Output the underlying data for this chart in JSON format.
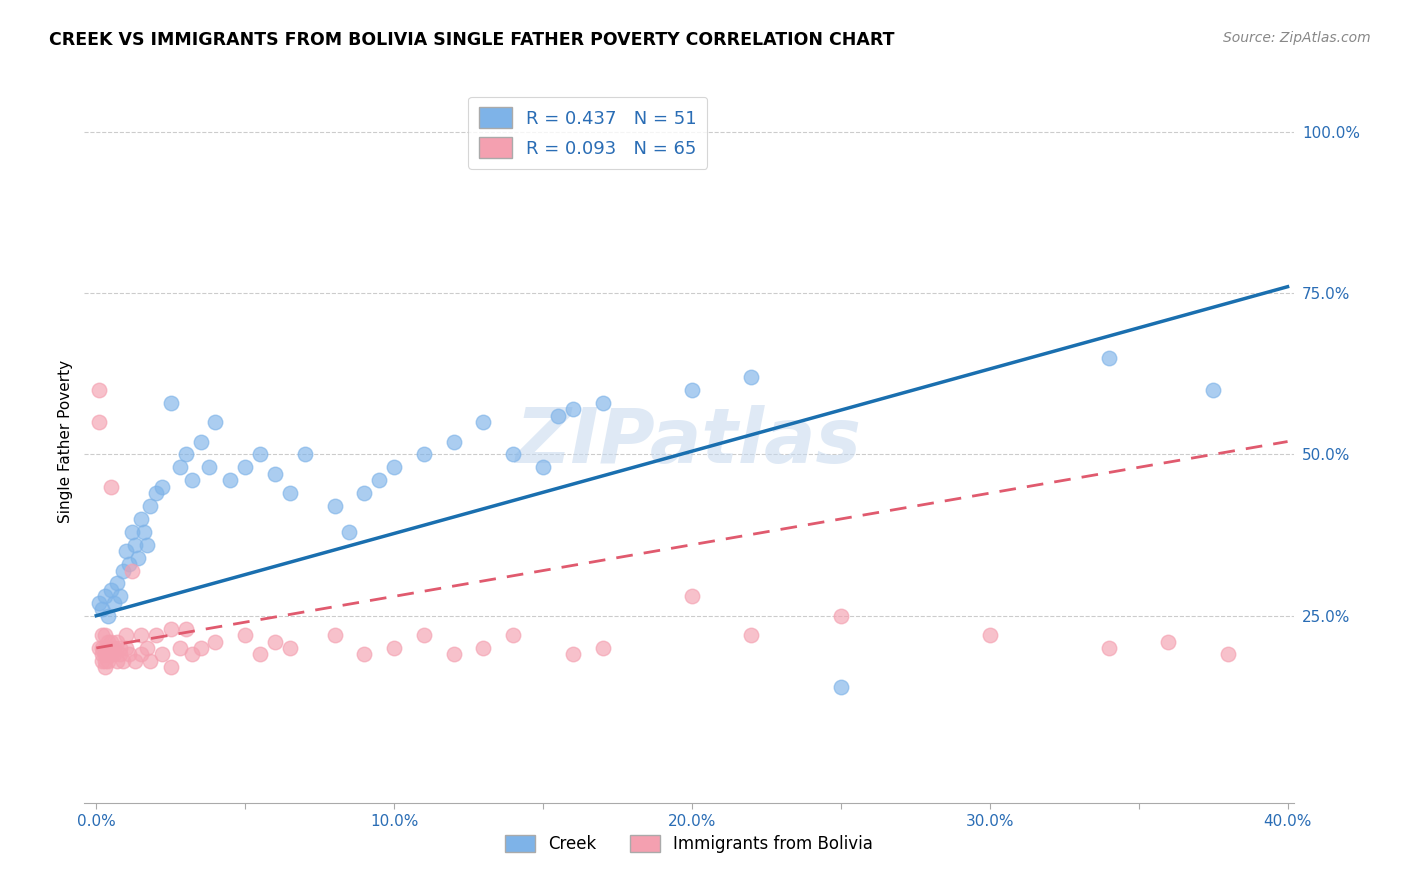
{
  "title": "CREEK VS IMMIGRANTS FROM BOLIVIA SINGLE FATHER POVERTY CORRELATION CHART",
  "source": "Source: ZipAtlas.com",
  "ylabel": "Single Father Poverty",
  "xlim": [
    -0.004,
    0.402
  ],
  "ylim": [
    -0.04,
    1.08
  ],
  "xtick_labels": [
    "0.0%",
    "",
    "10.0%",
    "",
    "20.0%",
    "",
    "30.0%",
    "",
    "40.0%"
  ],
  "xtick_values": [
    0.0,
    0.05,
    0.1,
    0.15,
    0.2,
    0.25,
    0.3,
    0.35,
    0.4
  ],
  "ytick_labels": [
    "25.0%",
    "50.0%",
    "75.0%",
    "100.0%"
  ],
  "ytick_values": [
    0.25,
    0.5,
    0.75,
    1.0
  ],
  "legend_labels": [
    "Creek",
    "Immigrants from Bolivia"
  ],
  "creek_color": "#7eb3e8",
  "bolivia_color": "#f4a0b0",
  "creek_line_color": "#1a6faf",
  "bolivia_line_color": "#e05a6e",
  "creek_R": 0.437,
  "creek_N": 51,
  "bolivia_R": 0.093,
  "bolivia_N": 65,
  "watermark": "ZIPatlas",
  "creek_x": [
    0.001,
    0.002,
    0.003,
    0.004,
    0.005,
    0.006,
    0.007,
    0.008,
    0.009,
    0.01,
    0.011,
    0.012,
    0.013,
    0.014,
    0.015,
    0.016,
    0.017,
    0.018,
    0.02,
    0.022,
    0.025,
    0.028,
    0.03,
    0.032,
    0.035,
    0.038,
    0.04,
    0.045,
    0.05,
    0.055,
    0.06,
    0.065,
    0.07,
    0.08,
    0.085,
    0.09,
    0.095,
    0.1,
    0.11,
    0.12,
    0.13,
    0.14,
    0.15,
    0.155,
    0.16,
    0.17,
    0.2,
    0.22,
    0.25,
    0.34,
    0.375
  ],
  "creek_y": [
    0.27,
    0.26,
    0.28,
    0.25,
    0.29,
    0.27,
    0.3,
    0.28,
    0.32,
    0.35,
    0.33,
    0.38,
    0.36,
    0.34,
    0.4,
    0.38,
    0.36,
    0.42,
    0.44,
    0.45,
    0.58,
    0.48,
    0.5,
    0.46,
    0.52,
    0.48,
    0.55,
    0.46,
    0.48,
    0.5,
    0.47,
    0.44,
    0.5,
    0.42,
    0.38,
    0.44,
    0.46,
    0.48,
    0.5,
    0.52,
    0.55,
    0.5,
    0.48,
    0.56,
    0.57,
    0.58,
    0.6,
    0.62,
    0.14,
    0.65,
    0.6
  ],
  "bolivia_x": [
    0.001,
    0.001,
    0.001,
    0.002,
    0.002,
    0.002,
    0.002,
    0.003,
    0.003,
    0.003,
    0.003,
    0.003,
    0.004,
    0.004,
    0.004,
    0.004,
    0.005,
    0.005,
    0.005,
    0.005,
    0.006,
    0.006,
    0.007,
    0.007,
    0.008,
    0.008,
    0.009,
    0.01,
    0.01,
    0.011,
    0.012,
    0.013,
    0.015,
    0.015,
    0.017,
    0.018,
    0.02,
    0.022,
    0.025,
    0.025,
    0.028,
    0.03,
    0.032,
    0.035,
    0.04,
    0.05,
    0.055,
    0.06,
    0.065,
    0.08,
    0.09,
    0.1,
    0.11,
    0.12,
    0.13,
    0.14,
    0.16,
    0.17,
    0.2,
    0.22,
    0.25,
    0.3,
    0.34,
    0.36,
    0.38
  ],
  "bolivia_y": [
    0.6,
    0.55,
    0.2,
    0.22,
    0.19,
    0.2,
    0.18,
    0.22,
    0.2,
    0.19,
    0.18,
    0.17,
    0.21,
    0.2,
    0.19,
    0.18,
    0.21,
    0.2,
    0.19,
    0.45,
    0.2,
    0.19,
    0.21,
    0.18,
    0.2,
    0.19,
    0.18,
    0.22,
    0.2,
    0.19,
    0.32,
    0.18,
    0.22,
    0.19,
    0.2,
    0.18,
    0.22,
    0.19,
    0.17,
    0.23,
    0.2,
    0.23,
    0.19,
    0.2,
    0.21,
    0.22,
    0.19,
    0.21,
    0.2,
    0.22,
    0.19,
    0.2,
    0.22,
    0.19,
    0.2,
    0.22,
    0.19,
    0.2,
    0.28,
    0.22,
    0.25,
    0.22,
    0.2,
    0.21,
    0.19
  ]
}
